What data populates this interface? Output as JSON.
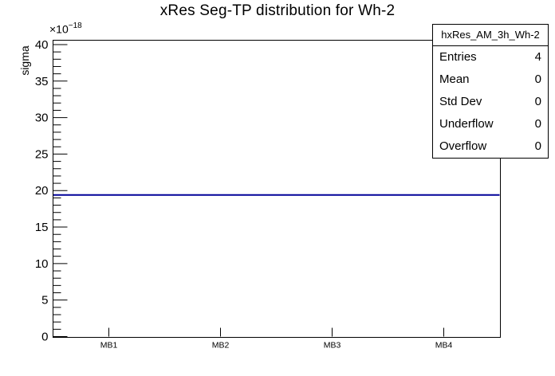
{
  "title": "xRes Seg-TP distribution for Wh-2",
  "axes": {
    "y": {
      "label": "sigma",
      "scale_base": "×10",
      "scale_exp": "−18",
      "range": [
        0,
        40.6
      ],
      "major_tick_step": 5,
      "minor_tick_step": 1
    },
    "x": {
      "categories": [
        "MB1",
        "MB2",
        "MB3",
        "MB4"
      ]
    }
  },
  "chart_data": {
    "type": "line",
    "title": "xRes Seg-TP distribution for Wh-2",
    "categories": [
      "MB1",
      "MB2",
      "MB3",
      "MB4"
    ],
    "values": [
      19.4,
      19.4,
      19.4,
      19.4
    ],
    "value_scale_factor": "1e-18",
    "xlabel": "",
    "ylabel": "sigma",
    "ylim": [
      0,
      40.6
    ],
    "yticks": [
      0,
      5,
      10,
      15,
      20,
      25,
      30,
      35,
      40
    ],
    "ytick_step": 5,
    "minor_tick_step": 1,
    "grid": false,
    "legend_position": "none",
    "line_color": "#000099"
  },
  "stats": {
    "title": "hxRes_AM_3h_Wh-2",
    "rows": [
      {
        "label": "Entries",
        "value": "4"
      },
      {
        "label": "Mean",
        "value": "0"
      },
      {
        "label": "Std Dev",
        "value": "0"
      },
      {
        "label": "Underflow",
        "value": "0"
      },
      {
        "label": "Overflow",
        "value": "0"
      }
    ]
  },
  "colors": {
    "histogram_line": "#000099",
    "frame": "#000000",
    "background": "#ffffff"
  }
}
